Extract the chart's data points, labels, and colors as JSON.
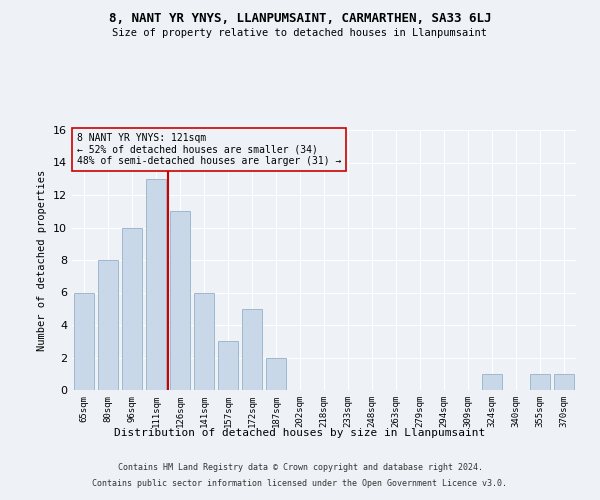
{
  "title1": "8, NANT YR YNYS, LLANPUMSAINT, CARMARTHEN, SA33 6LJ",
  "title2": "Size of property relative to detached houses in Llanpumsaint",
  "xlabel": "Distribution of detached houses by size in Llanpumsaint",
  "ylabel": "Number of detached properties",
  "categories": [
    "65sqm",
    "80sqm",
    "96sqm",
    "111sqm",
    "126sqm",
    "141sqm",
    "157sqm",
    "172sqm",
    "187sqm",
    "202sqm",
    "218sqm",
    "233sqm",
    "248sqm",
    "263sqm",
    "279sqm",
    "294sqm",
    "309sqm",
    "324sqm",
    "340sqm",
    "355sqm",
    "370sqm"
  ],
  "values": [
    6,
    8,
    10,
    13,
    11,
    6,
    3,
    5,
    2,
    0,
    0,
    0,
    0,
    0,
    0,
    0,
    0,
    1,
    0,
    1,
    1
  ],
  "bar_color": "#c8d8e8",
  "bar_edgecolor": "#a0b8cc",
  "ylim": [
    0,
    16
  ],
  "yticks": [
    0,
    2,
    4,
    6,
    8,
    10,
    12,
    14,
    16
  ],
  "vline_x": 3.5,
  "annotation_line1": "8 NANT YR YNYS: 121sqm",
  "annotation_line2": "← 52% of detached houses are smaller (34)",
  "annotation_line3": "48% of semi-detached houses are larger (31) →",
  "vline_color": "#cc0000",
  "annotation_box_edgecolor": "#cc0000",
  "background_color": "#eef2f7",
  "grid_color": "#ffffff",
  "footer1": "Contains HM Land Registry data © Crown copyright and database right 2024.",
  "footer2": "Contains public sector information licensed under the Open Government Licence v3.0."
}
